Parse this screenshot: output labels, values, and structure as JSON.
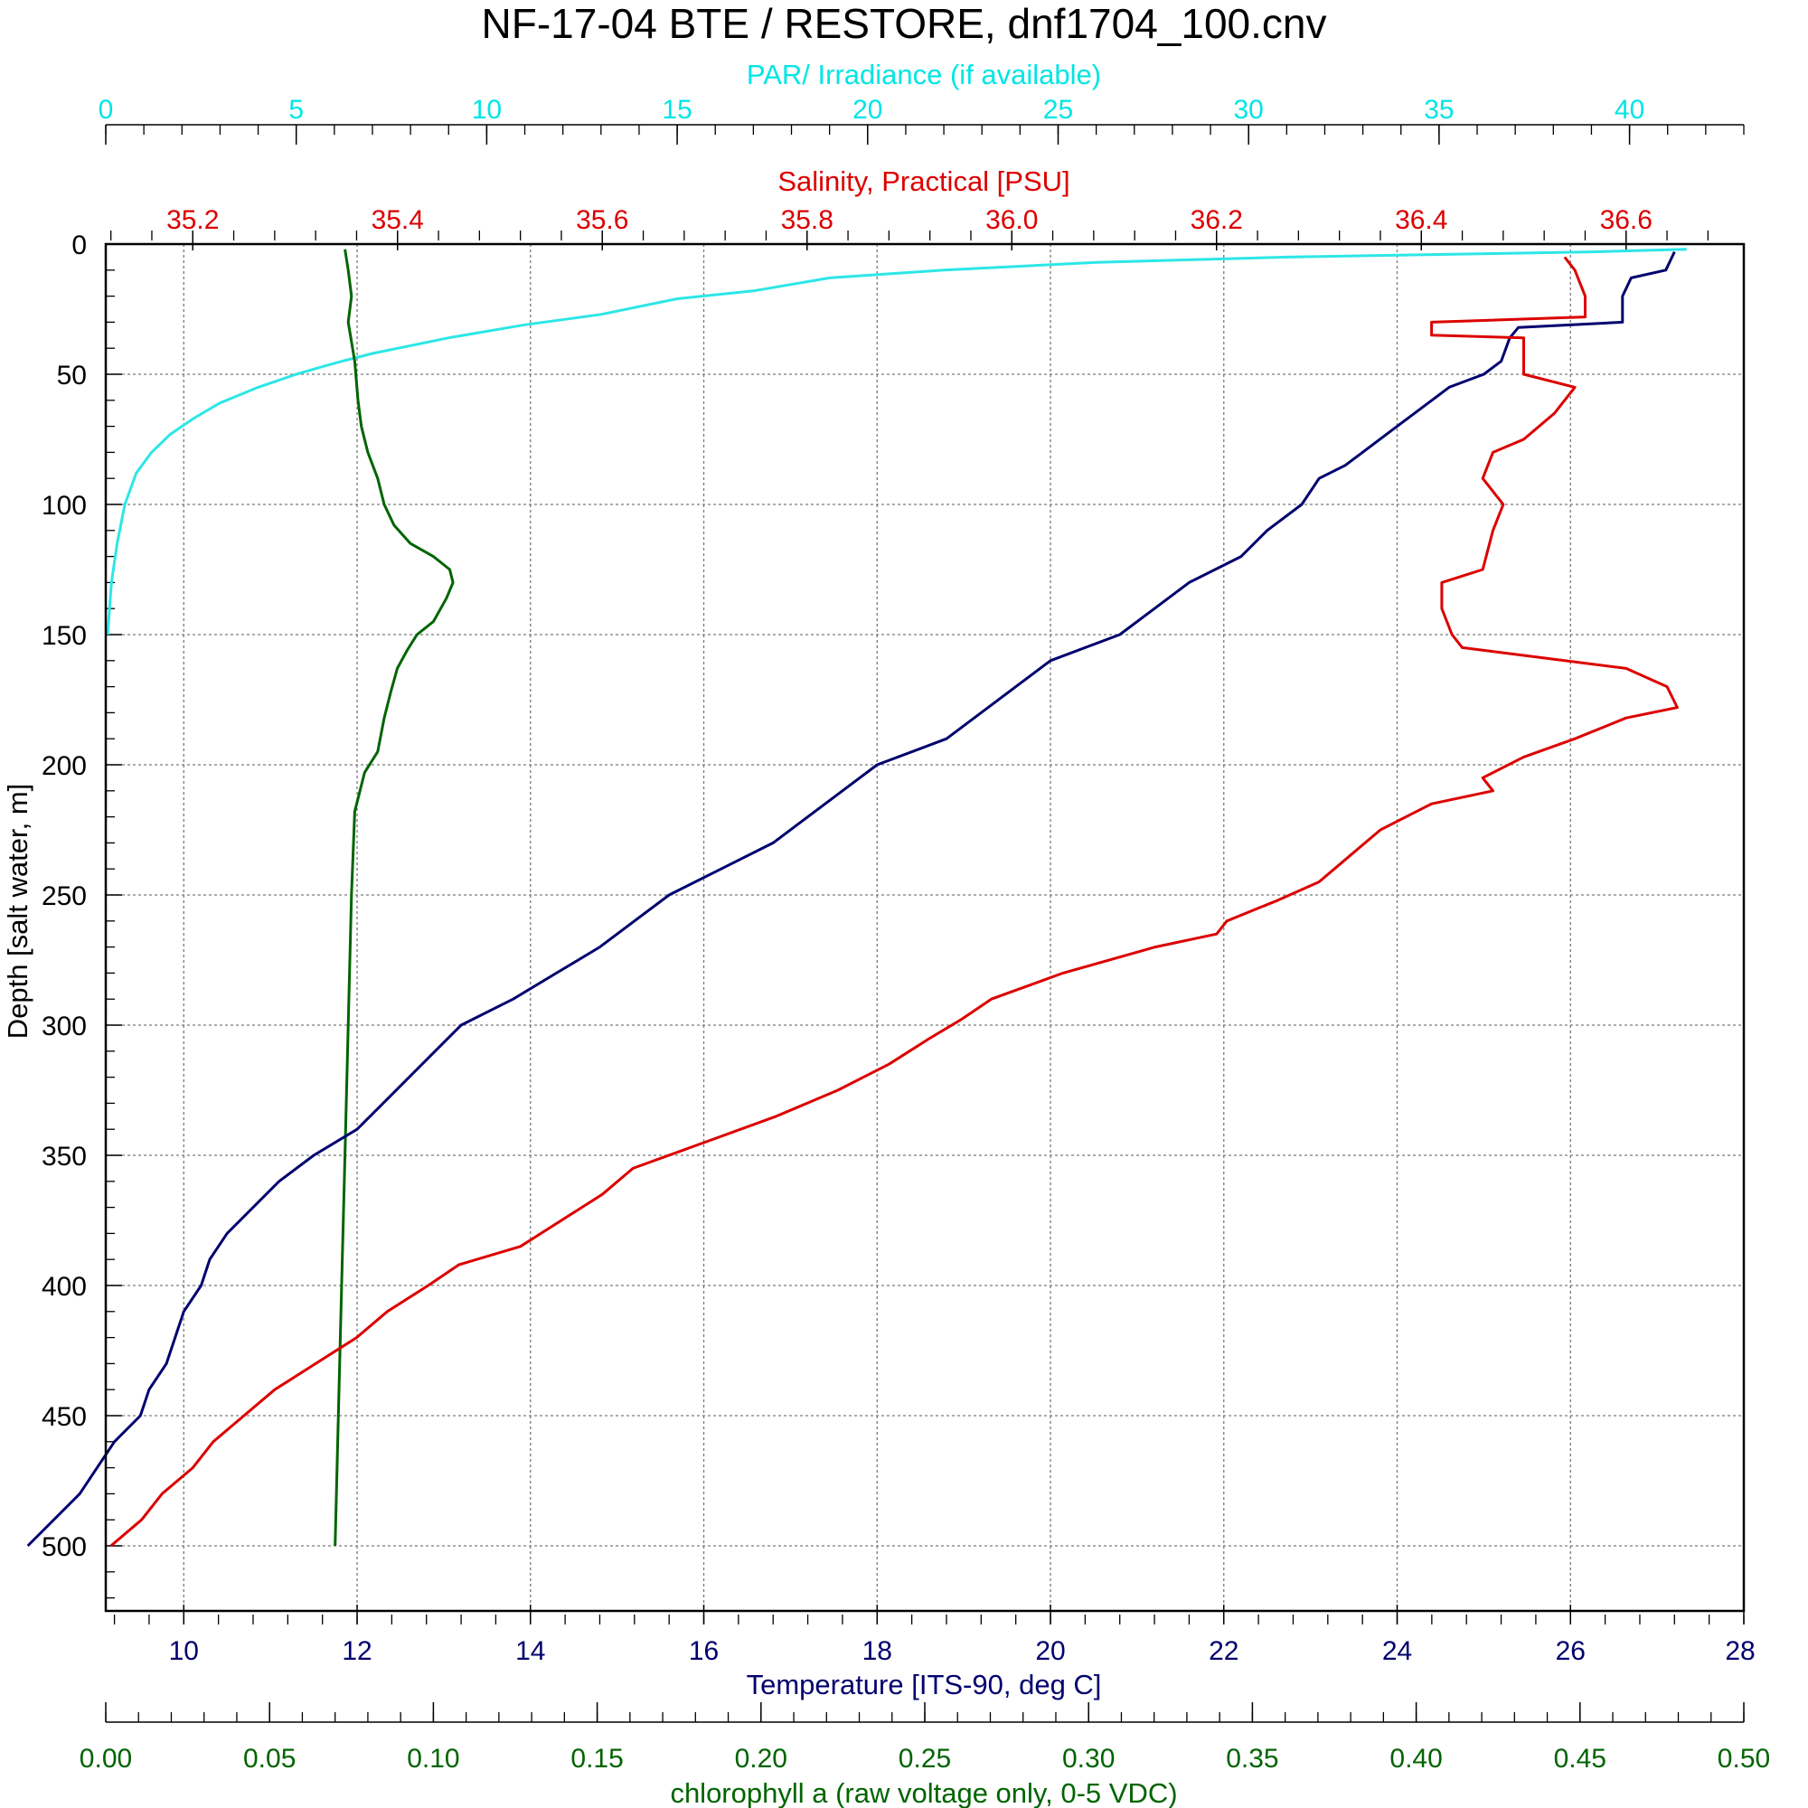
{
  "chart_data": {
    "type": "line",
    "title": "NF-17-04 BTE / RESTORE, dnf1704_100.cnv",
    "y_axis": {
      "label": "Depth [salt water, m]",
      "range": [
        0,
        525
      ],
      "inverted": true,
      "ticks": [
        "0",
        "50",
        "100",
        "150",
        "200",
        "250",
        "300",
        "350",
        "400",
        "450",
        "500"
      ],
      "grid": true
    },
    "axes": {
      "temperature": {
        "label": "Temperature [ITS-90, deg C]",
        "position": "bottom",
        "range": [
          9.1,
          28
        ],
        "ticks": [
          "10",
          "12",
          "14",
          "16",
          "18",
          "20",
          "22",
          "24",
          "26",
          "28"
        ],
        "color": "#00006e"
      },
      "chlorophyll": {
        "label": "chlorophyll a (raw voltage only, 0-5 VDC)",
        "position": "bottom-outer",
        "range": [
          0,
          0.5
        ],
        "ticks": [
          "0.00",
          "0.05",
          "0.10",
          "0.15",
          "0.20",
          "0.25",
          "0.30",
          "0.35",
          "0.40",
          "0.45",
          "0.50"
        ],
        "color": "#006400"
      },
      "salinity": {
        "label": "Salinity, Practical [PSU]",
        "position": "top",
        "range": [
          35.115,
          36.715
        ],
        "ticks": [
          "35.2",
          "35.4",
          "35.6",
          "35.8",
          "36.0",
          "36.2",
          "36.4",
          "36.6"
        ],
        "color": "#dc0000"
      },
      "par": {
        "label": "PAR/ Irradiance (if available)",
        "position": "top-outer",
        "range": [
          0,
          43
        ],
        "ticks": [
          "0",
          "5",
          "10",
          "15",
          "20",
          "25",
          "30",
          "35",
          "40"
        ],
        "color": "#00e5e5"
      }
    },
    "series": [
      {
        "axis": "par",
        "color": "#2ee6e6",
        "points": [
          [
            41.5,
            2
          ],
          [
            39,
            3
          ],
          [
            35,
            4
          ],
          [
            31,
            5
          ],
          [
            26,
            7
          ],
          [
            22,
            10
          ],
          [
            19,
            13
          ],
          [
            17,
            18
          ],
          [
            15,
            21
          ],
          [
            13,
            27
          ],
          [
            11,
            31
          ],
          [
            9,
            36
          ],
          [
            7,
            42
          ],
          [
            6.2,
            45
          ],
          [
            5.7,
            47
          ],
          [
            5,
            50
          ],
          [
            4,
            55
          ],
          [
            3,
            61
          ],
          [
            2.3,
            67
          ],
          [
            1.7,
            73
          ],
          [
            1.2,
            80
          ],
          [
            0.8,
            88
          ],
          [
            0.5,
            100
          ],
          [
            0.3,
            115
          ],
          [
            0.15,
            130
          ],
          [
            0.05,
            150
          ]
        ]
      },
      {
        "axis": "chlorophyll",
        "color": "#006400",
        "points": [
          [
            0.073,
            2
          ],
          [
            0.074,
            10
          ],
          [
            0.075,
            20
          ],
          [
            0.074,
            30
          ],
          [
            0.076,
            45
          ],
          [
            0.077,
            60
          ],
          [
            0.078,
            70
          ],
          [
            0.08,
            80
          ],
          [
            0.083,
            90
          ],
          [
            0.085,
            100
          ],
          [
            0.088,
            108
          ],
          [
            0.093,
            115
          ],
          [
            0.1,
            120
          ],
          [
            0.105,
            125
          ],
          [
            0.106,
            130
          ],
          [
            0.104,
            136
          ],
          [
            0.1,
            145
          ],
          [
            0.095,
            150
          ],
          [
            0.092,
            156
          ],
          [
            0.089,
            163
          ],
          [
            0.087,
            172
          ],
          [
            0.085,
            182
          ],
          [
            0.083,
            195
          ],
          [
            0.079,
            203
          ],
          [
            0.076,
            218
          ],
          [
            0.075,
            250
          ],
          [
            0.074,
            300
          ],
          [
            0.073,
            350
          ],
          [
            0.072,
            400
          ],
          [
            0.071,
            450
          ],
          [
            0.07,
            500
          ]
        ]
      },
      {
        "axis": "temperature",
        "color": "#00006e",
        "points": [
          [
            27.2,
            3
          ],
          [
            27.1,
            10
          ],
          [
            26.7,
            13
          ],
          [
            26.6,
            20
          ],
          [
            26.6,
            30
          ],
          [
            25.4,
            32
          ],
          [
            25.3,
            36
          ],
          [
            25.2,
            45
          ],
          [
            25.0,
            50
          ],
          [
            24.6,
            55
          ],
          [
            24.4,
            60
          ],
          [
            24.0,
            70
          ],
          [
            23.6,
            80
          ],
          [
            23.4,
            85
          ],
          [
            23.1,
            90
          ],
          [
            22.9,
            100
          ],
          [
            22.5,
            110
          ],
          [
            22.2,
            120
          ],
          [
            21.6,
            130
          ],
          [
            21.2,
            140
          ],
          [
            20.8,
            150
          ],
          [
            20.0,
            160
          ],
          [
            19.6,
            170
          ],
          [
            19.2,
            180
          ],
          [
            18.8,
            190
          ],
          [
            18.0,
            200
          ],
          [
            17.6,
            210
          ],
          [
            17.2,
            220
          ],
          [
            16.8,
            230
          ],
          [
            16.2,
            240
          ],
          [
            15.6,
            250
          ],
          [
            15.2,
            260
          ],
          [
            14.8,
            270
          ],
          [
            14.3,
            280
          ],
          [
            13.8,
            290
          ],
          [
            13.2,
            300
          ],
          [
            12.9,
            310
          ],
          [
            12.6,
            320
          ],
          [
            12.3,
            330
          ],
          [
            12.0,
            340
          ],
          [
            11.5,
            350
          ],
          [
            11.1,
            360
          ],
          [
            10.8,
            370
          ],
          [
            10.5,
            380
          ],
          [
            10.3,
            390
          ],
          [
            10.2,
            400
          ],
          [
            10.0,
            410
          ],
          [
            9.9,
            420
          ],
          [
            9.8,
            430
          ],
          [
            9.6,
            440
          ],
          [
            9.5,
            450
          ],
          [
            9.2,
            460
          ],
          [
            9.0,
            470
          ],
          [
            8.8,
            480
          ],
          [
            8.5,
            490
          ],
          [
            8.2,
            500
          ]
        ]
      },
      {
        "axis": "salinity",
        "color": "#dc0000",
        "points": [
          [
            36.54,
            5
          ],
          [
            36.55,
            10
          ],
          [
            36.56,
            20
          ],
          [
            36.56,
            28
          ],
          [
            36.41,
            30
          ],
          [
            36.41,
            35
          ],
          [
            36.5,
            36
          ],
          [
            36.5,
            50
          ],
          [
            36.55,
            55
          ],
          [
            36.53,
            65
          ],
          [
            36.5,
            75
          ],
          [
            36.47,
            80
          ],
          [
            36.46,
            90
          ],
          [
            36.48,
            100
          ],
          [
            36.47,
            110
          ],
          [
            36.46,
            125
          ],
          [
            36.42,
            130
          ],
          [
            36.42,
            140
          ],
          [
            36.43,
            150
          ],
          [
            36.44,
            155
          ],
          [
            36.5,
            158
          ],
          [
            36.6,
            163
          ],
          [
            36.64,
            170
          ],
          [
            36.65,
            178
          ],
          [
            36.6,
            182
          ],
          [
            36.55,
            190
          ],
          [
            36.5,
            197
          ],
          [
            36.46,
            205
          ],
          [
            36.47,
            210
          ],
          [
            36.41,
            215
          ],
          [
            36.36,
            225
          ],
          [
            36.33,
            235
          ],
          [
            36.3,
            245
          ],
          [
            36.26,
            252
          ],
          [
            36.21,
            260
          ],
          [
            36.2,
            265
          ],
          [
            36.14,
            270
          ],
          [
            36.05,
            280
          ],
          [
            35.98,
            290
          ],
          [
            35.95,
            298
          ],
          [
            35.92,
            305
          ],
          [
            35.88,
            315
          ],
          [
            35.83,
            325
          ],
          [
            35.77,
            335
          ],
          [
            35.7,
            345
          ],
          [
            35.63,
            355
          ],
          [
            35.6,
            365
          ],
          [
            35.56,
            375
          ],
          [
            35.52,
            385
          ],
          [
            35.46,
            392
          ],
          [
            35.43,
            400
          ],
          [
            35.39,
            410
          ],
          [
            35.36,
            420
          ],
          [
            35.32,
            430
          ],
          [
            35.28,
            440
          ],
          [
            35.25,
            450
          ],
          [
            35.22,
            460
          ],
          [
            35.2,
            470
          ],
          [
            35.17,
            480
          ],
          [
            35.15,
            490
          ],
          [
            35.12,
            500
          ]
        ]
      }
    ]
  }
}
